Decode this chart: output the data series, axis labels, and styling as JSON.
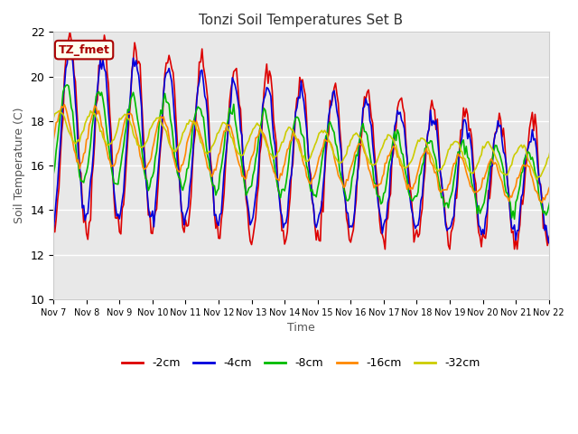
{
  "title": "Tonzi Soil Temperatures Set B",
  "xlabel": "Time",
  "ylabel": "Soil Temperature (C)",
  "ylim": [
    10,
    22
  ],
  "bg_color": "#e8e8e8",
  "fig_bg": "#ffffff",
  "annotation_text": "TZ_fmet",
  "annotation_bg": "#ffffee",
  "annotation_border": "#aa0000",
  "lines": {
    "-2cm": {
      "color": "#dd0000",
      "lw": 1.2
    },
    "-4cm": {
      "color": "#0000dd",
      "lw": 1.2
    },
    "-8cm": {
      "color": "#00bb00",
      "lw": 1.2
    },
    "-16cm": {
      "color": "#ff8800",
      "lw": 1.2
    },
    "-32cm": {
      "color": "#cccc00",
      "lw": 1.2
    }
  },
  "xtick_labels": [
    "Nov 7",
    "Nov 8",
    "Nov 9",
    "Nov 10",
    "Nov 11",
    "Nov 12",
    "Nov 13",
    "Nov 14",
    "Nov 15",
    "Nov 16",
    "Nov 17",
    "Nov 18",
    "Nov 19",
    "Nov 20",
    "Nov 21",
    "Nov 22"
  ],
  "ytick_vals": [
    10,
    12,
    14,
    16,
    18,
    20,
    22
  ]
}
